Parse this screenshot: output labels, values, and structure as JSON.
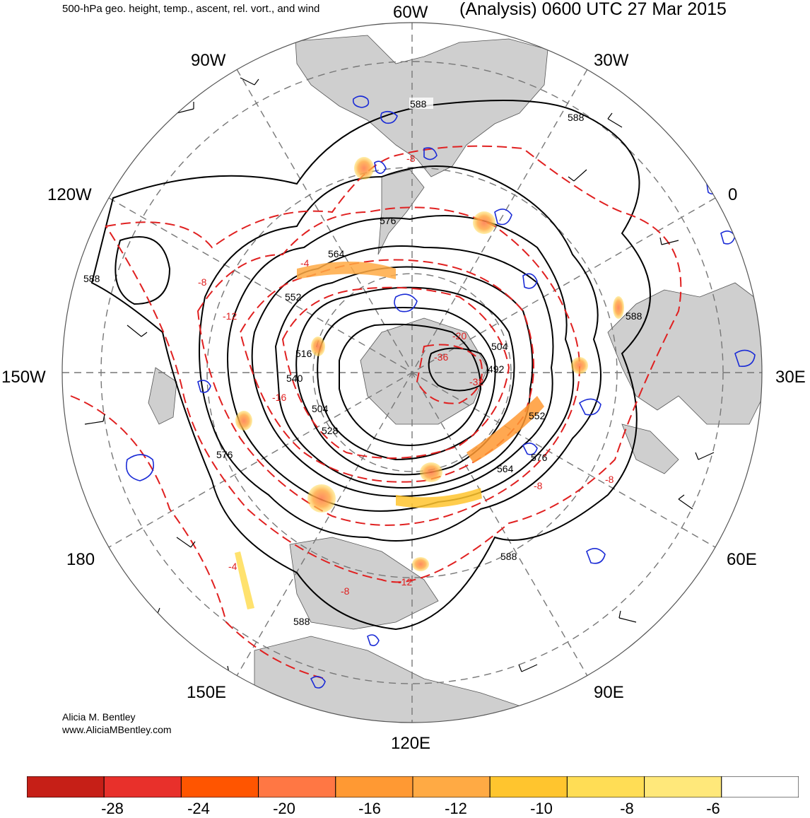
{
  "header": {
    "title_left": "500-hPa geo. height, temp., ascent, rel. vort., and wind",
    "title_right": "(Analysis) 0600 UTC 27 Mar 2015"
  },
  "longitude_labels": {
    "w60": "60W",
    "w30": "30W",
    "w90": "90W",
    "e0": "0",
    "w120": "120W",
    "e30": "30E",
    "w150": "150W",
    "w180": "180",
    "e60": "60E",
    "e150": "150E",
    "e90": "90E",
    "e120": "120E"
  },
  "contour_labels": {
    "height": [
      "588",
      "588",
      "588",
      "588",
      "588",
      "588",
      "576",
      "576",
      "576",
      "564",
      "564",
      "552",
      "552",
      "540",
      "528",
      "516",
      "504",
      "504",
      "492"
    ],
    "temperature": [
      "-8",
      "-8",
      "-8",
      "-8",
      "-12",
      "-12",
      "-16",
      "-20",
      "-32",
      "-36",
      "-4",
      "-4",
      "-8"
    ]
  },
  "credit": {
    "name": "Alicia M. Bentley",
    "url": "www.AliciaMBentley.com"
  },
  "colorbar": {
    "colors": [
      "#c61f17",
      "#e8302b",
      "#ff5500",
      "#ff7744",
      "#ff9933",
      "#ffaa44",
      "#ffc52e",
      "#ffdd55",
      "#ffe87a",
      "#ffffff"
    ],
    "labels": [
      "-28",
      "-24",
      "-20",
      "-16",
      "-12",
      "-10",
      "-8",
      "-6"
    ]
  },
  "colors": {
    "land": "#cfcfcf",
    "height_contour": "#000000",
    "temperature_contour": "#e02020",
    "vorticity_contour": "#1a2bd6",
    "graticule": "#777777"
  }
}
